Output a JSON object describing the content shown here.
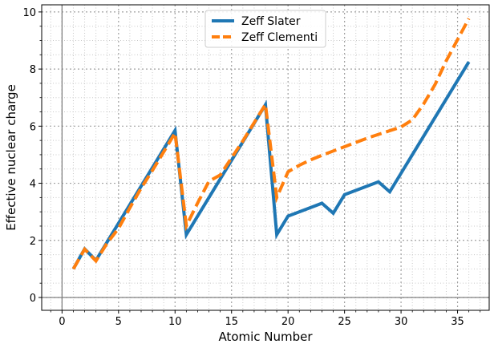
{
  "chart_data": {
    "type": "line",
    "title": "",
    "xlabel": "Atomic Number",
    "ylabel": "Effective nuclear charge",
    "xlim": [
      -1.8,
      37.8
    ],
    "ylim": [
      -0.45,
      10.25
    ],
    "xticks": [
      0,
      5,
      10,
      15,
      20,
      25,
      30,
      35
    ],
    "yticks": [
      0,
      2,
      4,
      6,
      8,
      10
    ],
    "x_minor_step": 1,
    "y_minor_step": 0.5,
    "grid": true,
    "grid_major": true,
    "grid_minor": true,
    "reference_lines": {
      "x": 0,
      "y": 0
    },
    "legend_position": "top-center",
    "series": [
      {
        "name": "Zeff Slater",
        "color": "#1f77b4",
        "dash": "solid",
        "x": [
          1,
          2,
          3,
          10,
          11,
          18,
          19,
          20,
          23,
          24,
          25,
          28,
          29,
          36
        ],
        "y": [
          1.0,
          1.7,
          1.3,
          5.85,
          2.2,
          6.75,
          2.2,
          2.85,
          3.3,
          2.95,
          3.6,
          4.05,
          3.7,
          8.25
        ]
      },
      {
        "name": "Zeff Clementi",
        "color": "#ff7f0e",
        "dash": "dashed",
        "x": [
          1,
          2,
          3,
          4,
          5,
          6,
          7,
          8,
          9,
          10,
          11,
          12,
          13,
          14,
          15,
          16,
          17,
          18,
          19,
          20,
          21,
          22,
          23,
          24,
          25,
          26,
          27,
          28,
          29,
          30,
          31,
          32,
          33,
          34,
          35,
          36
        ],
        "y": [
          1.0,
          1.69,
          1.28,
          1.91,
          2.42,
          3.14,
          3.83,
          4.45,
          5.1,
          5.76,
          2.51,
          3.31,
          4.07,
          4.29,
          4.89,
          5.48,
          6.12,
          6.76,
          3.5,
          4.4,
          4.63,
          4.82,
          4.98,
          5.13,
          5.28,
          5.43,
          5.58,
          5.71,
          5.84,
          5.97,
          6.22,
          6.78,
          7.45,
          8.29,
          9.03,
          9.77
        ]
      }
    ]
  }
}
